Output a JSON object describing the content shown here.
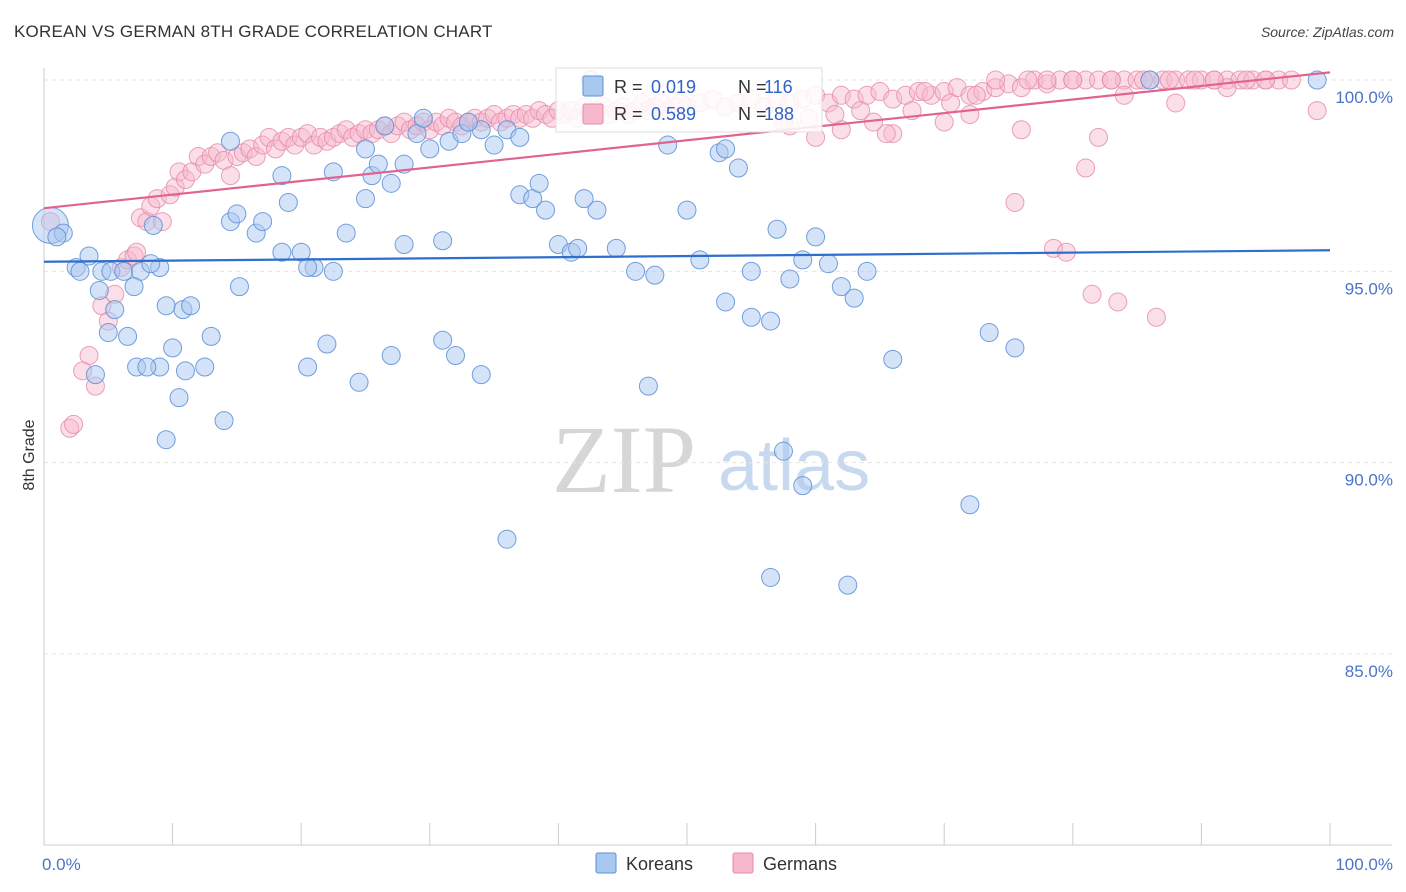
{
  "title": "KOREAN VS GERMAN 8TH GRADE CORRELATION CHART",
  "source": "Source: ZipAtlas.com",
  "watermark": {
    "zip": "ZIP",
    "atlas": "atlas"
  },
  "colors": {
    "korean_fill": "#a9c8f0",
    "korean_stroke": "#5b8fd6",
    "korean_line": "#2e6fcc",
    "german_fill": "#f6b8cb",
    "german_stroke": "#e58aa8",
    "german_line": "#e0648f",
    "tick_label": "#4a74c9",
    "grid": "#e4e4e4"
  },
  "legend": {
    "korean": {
      "r_label": "R = ",
      "r_value": "0.019",
      "n_label": "N = ",
      "n_value": "116"
    },
    "german": {
      "r_label": "R = ",
      "r_value": "0.589",
      "n_label": "N = ",
      "n_value": "188"
    }
  },
  "chart_data": {
    "type": "scatter",
    "title": "KOREAN VS GERMAN 8TH GRADE CORRELATION CHART",
    "xlabel": "",
    "ylabel": "8th Grade",
    "xlim": [
      0,
      100
    ],
    "ylim": [
      80.5,
      100.6
    ],
    "x_tick_labels": [
      "0.0%",
      "100.0%"
    ],
    "y_ticks": [
      85,
      90,
      95,
      100
    ],
    "y_tick_labels": [
      "85.0%",
      "90.0%",
      "95.0%",
      "100.0%"
    ],
    "grid": true,
    "legend_position": "top-center",
    "bottom_legend": [
      "Koreans",
      "Germans"
    ],
    "series": [
      {
        "name": "Koreans",
        "r": 0.019,
        "n": 116,
        "trend": {
          "x": [
            0,
            100
          ],
          "y": [
            95.25,
            95.55
          ]
        },
        "points": [
          [
            0.5,
            96.2
          ],
          [
            1.5,
            96.0
          ],
          [
            1.0,
            95.9
          ],
          [
            3.5,
            95.4
          ],
          [
            2.5,
            95.1
          ],
          [
            2.8,
            95.0
          ],
          [
            4.5,
            95.0
          ],
          [
            5.2,
            95.0
          ],
          [
            6.2,
            95.0
          ],
          [
            7.5,
            95.0
          ],
          [
            9.0,
            95.1
          ],
          [
            8.3,
            95.2
          ],
          [
            7.0,
            94.6
          ],
          [
            4.3,
            94.5
          ],
          [
            5.5,
            94.0
          ],
          [
            9.5,
            94.1
          ],
          [
            10.8,
            94.0
          ],
          [
            11.4,
            94.1
          ],
          [
            5.0,
            93.4
          ],
          [
            6.5,
            93.3
          ],
          [
            13.0,
            93.3
          ],
          [
            10.0,
            93.0
          ],
          [
            9.0,
            92.5
          ],
          [
            7.2,
            92.5
          ],
          [
            8.0,
            92.5
          ],
          [
            12.5,
            92.5
          ],
          [
            4.0,
            92.3
          ],
          [
            10.5,
            91.7
          ],
          [
            11.0,
            92.4
          ],
          [
            14.0,
            91.1
          ],
          [
            9.5,
            90.6
          ],
          [
            15.2,
            94.6
          ],
          [
            14.5,
            96.3
          ],
          [
            15.0,
            96.5
          ],
          [
            16.5,
            96.0
          ],
          [
            17.0,
            96.3
          ],
          [
            18.5,
            95.5
          ],
          [
            20.0,
            95.5
          ],
          [
            21.0,
            95.1
          ],
          [
            22.5,
            95.0
          ],
          [
            23.5,
            96.0
          ],
          [
            25.0,
            96.9
          ],
          [
            25.5,
            97.5
          ],
          [
            26.0,
            97.8
          ],
          [
            27.0,
            97.3
          ],
          [
            28.0,
            97.8
          ],
          [
            29.0,
            98.6
          ],
          [
            30.0,
            98.2
          ],
          [
            31.5,
            98.4
          ],
          [
            32.5,
            98.6
          ],
          [
            34.0,
            98.7
          ],
          [
            35.0,
            98.3
          ],
          [
            36.0,
            98.7
          ],
          [
            37.0,
            97.0
          ],
          [
            38.0,
            96.9
          ],
          [
            38.5,
            97.3
          ],
          [
            39.0,
            96.6
          ],
          [
            40.0,
            95.7
          ],
          [
            41.0,
            95.5
          ],
          [
            41.5,
            95.6
          ],
          [
            42.0,
            96.9
          ],
          [
            43.0,
            96.6
          ],
          [
            44.5,
            95.6
          ],
          [
            46.0,
            95.0
          ],
          [
            47.5,
            94.9
          ],
          [
            48.5,
            98.3
          ],
          [
            50.0,
            96.6
          ],
          [
            51.0,
            95.3
          ],
          [
            52.5,
            98.1
          ],
          [
            53.0,
            98.2
          ],
          [
            54.0,
            97.7
          ],
          [
            55.0,
            95.0
          ],
          [
            56.5,
            93.7
          ],
          [
            57.0,
            96.1
          ],
          [
            58.0,
            94.8
          ],
          [
            59.0,
            95.3
          ],
          [
            60.0,
            95.9
          ],
          [
            61.0,
            95.2
          ],
          [
            62.0,
            94.6
          ],
          [
            63.0,
            94.3
          ],
          [
            64.0,
            95.0
          ],
          [
            66.0,
            92.7
          ],
          [
            14.5,
            98.4
          ],
          [
            18.5,
            97.5
          ],
          [
            19.0,
            96.8
          ],
          [
            22.5,
            97.6
          ],
          [
            25.0,
            98.2
          ],
          [
            26.5,
            98.8
          ],
          [
            29.5,
            99.0
          ],
          [
            33.0,
            98.9
          ],
          [
            37.0,
            98.5
          ],
          [
            22.0,
            93.1
          ],
          [
            24.5,
            92.1
          ],
          [
            31.0,
            93.2
          ],
          [
            32.0,
            92.8
          ],
          [
            34.0,
            92.3
          ],
          [
            20.5,
            92.5
          ],
          [
            27.0,
            92.8
          ],
          [
            28.0,
            95.7
          ],
          [
            31.0,
            95.8
          ],
          [
            53.0,
            94.2
          ],
          [
            55.0,
            93.8
          ],
          [
            47.0,
            92.0
          ],
          [
            57.5,
            90.3
          ],
          [
            59.0,
            89.4
          ],
          [
            72.0,
            88.9
          ],
          [
            36.0,
            88.0
          ],
          [
            56.5,
            87.0
          ],
          [
            62.5,
            86.8
          ],
          [
            73.5,
            93.4
          ],
          [
            75.5,
            93.0
          ],
          [
            86.0,
            100.0
          ],
          [
            99.0,
            100.0
          ],
          [
            42.5,
            100.0
          ],
          [
            20.5,
            95.1
          ],
          [
            8.5,
            96.2
          ]
        ]
      },
      {
        "name": "Germans",
        "r": 0.589,
        "n": 188,
        "trend": {
          "x": [
            0,
            100
          ],
          "y": [
            96.65,
            100.2
          ]
        },
        "points": [
          [
            0.5,
            96.3
          ],
          [
            3.5,
            92.8
          ],
          [
            3.0,
            92.4
          ],
          [
            4.0,
            92.0
          ],
          [
            2.0,
            90.9
          ],
          [
            2.3,
            91.0
          ],
          [
            4.5,
            94.1
          ],
          [
            5.0,
            93.7
          ],
          [
            5.5,
            94.4
          ],
          [
            6.0,
            95.1
          ],
          [
            6.5,
            95.3
          ],
          [
            7.0,
            95.4
          ],
          [
            7.2,
            95.5
          ],
          [
            7.5,
            96.4
          ],
          [
            8.0,
            96.3
          ],
          [
            8.3,
            96.7
          ],
          [
            8.8,
            96.9
          ],
          [
            9.2,
            96.3
          ],
          [
            9.8,
            97.0
          ],
          [
            10.2,
            97.2
          ],
          [
            10.5,
            97.6
          ],
          [
            11.0,
            97.4
          ],
          [
            11.5,
            97.6
          ],
          [
            12.0,
            98.0
          ],
          [
            12.5,
            97.8
          ],
          [
            13.0,
            98.0
          ],
          [
            13.5,
            98.1
          ],
          [
            14.0,
            97.9
          ],
          [
            14.5,
            97.5
          ],
          [
            15.0,
            98.0
          ],
          [
            15.5,
            98.1
          ],
          [
            16.0,
            98.2
          ],
          [
            16.5,
            98.0
          ],
          [
            17.0,
            98.3
          ],
          [
            17.5,
            98.5
          ],
          [
            18.0,
            98.2
          ],
          [
            18.5,
            98.4
          ],
          [
            19.0,
            98.5
          ],
          [
            19.5,
            98.3
          ],
          [
            20.0,
            98.5
          ],
          [
            20.5,
            98.6
          ],
          [
            21.0,
            98.3
          ],
          [
            21.5,
            98.5
          ],
          [
            22.0,
            98.4
          ],
          [
            22.5,
            98.5
          ],
          [
            23.0,
            98.6
          ],
          [
            23.5,
            98.7
          ],
          [
            24.0,
            98.5
          ],
          [
            24.5,
            98.6
          ],
          [
            25.0,
            98.7
          ],
          [
            25.5,
            98.6
          ],
          [
            26.0,
            98.7
          ],
          [
            26.5,
            98.8
          ],
          [
            27.0,
            98.6
          ],
          [
            27.5,
            98.8
          ],
          [
            28.0,
            98.9
          ],
          [
            28.5,
            98.7
          ],
          [
            29.0,
            98.8
          ],
          [
            29.5,
            98.9
          ],
          [
            30.0,
            98.7
          ],
          [
            30.5,
            98.9
          ],
          [
            31.0,
            98.8
          ],
          [
            31.5,
            99.0
          ],
          [
            32.0,
            98.9
          ],
          [
            32.5,
            98.8
          ],
          [
            33.0,
            98.9
          ],
          [
            33.5,
            99.0
          ],
          [
            34.0,
            98.9
          ],
          [
            34.5,
            99.0
          ],
          [
            35.0,
            99.1
          ],
          [
            35.5,
            98.9
          ],
          [
            36.0,
            99.0
          ],
          [
            36.5,
            99.1
          ],
          [
            37.0,
            99.0
          ],
          [
            37.5,
            99.1
          ],
          [
            38.0,
            99.0
          ],
          [
            38.5,
            99.2
          ],
          [
            39.0,
            99.1
          ],
          [
            39.5,
            99.0
          ],
          [
            40.0,
            99.2
          ],
          [
            40.5,
            99.1
          ],
          [
            41.0,
            99.2
          ],
          [
            41.5,
            99.0
          ],
          [
            42.0,
            99.3
          ],
          [
            42.5,
            99.1
          ],
          [
            43.0,
            99.2
          ],
          [
            43.5,
            99.3
          ],
          [
            44.0,
            99.1
          ],
          [
            44.5,
            99.2
          ],
          [
            45.0,
            99.3
          ],
          [
            45.5,
            99.1
          ],
          [
            46.0,
            99.2
          ],
          [
            46.5,
            99.4
          ],
          [
            47.0,
            99.2
          ],
          [
            47.5,
            99.3
          ],
          [
            48.0,
            99.4
          ],
          [
            48.5,
            99.2
          ],
          [
            49.0,
            99.3
          ],
          [
            49.5,
            99.4
          ],
          [
            50.0,
            99.3
          ],
          [
            51.0,
            99.4
          ],
          [
            52.0,
            99.5
          ],
          [
            53.0,
            99.3
          ],
          [
            54.0,
            99.4
          ],
          [
            55.0,
            99.5
          ],
          [
            56.0,
            99.3
          ],
          [
            57.0,
            99.5
          ],
          [
            58.0,
            99.4
          ],
          [
            59.0,
            99.5
          ],
          [
            60.0,
            99.6
          ],
          [
            61.0,
            99.4
          ],
          [
            62.0,
            99.6
          ],
          [
            63.0,
            99.5
          ],
          [
            64.0,
            99.6
          ],
          [
            65.0,
            99.7
          ],
          [
            66.0,
            99.5
          ],
          [
            67.0,
            99.6
          ],
          [
            68.0,
            99.7
          ],
          [
            69.0,
            99.6
          ],
          [
            70.0,
            99.7
          ],
          [
            71.0,
            99.8
          ],
          [
            72.0,
            99.6
          ],
          [
            73.0,
            99.7
          ],
          [
            74.0,
            99.8
          ],
          [
            75.0,
            99.9
          ],
          [
            76.0,
            99.8
          ],
          [
            77.0,
            100.0
          ],
          [
            78.0,
            99.9
          ],
          [
            79.0,
            100.0
          ],
          [
            80.0,
            100.0
          ],
          [
            81.0,
            100.0
          ],
          [
            82.0,
            100.0
          ],
          [
            83.0,
            100.0
          ],
          [
            84.0,
            100.0
          ],
          [
            85.0,
            100.0
          ],
          [
            86.0,
            100.0
          ],
          [
            87.0,
            100.0
          ],
          [
            88.0,
            100.0
          ],
          [
            89.0,
            100.0
          ],
          [
            90.0,
            100.0
          ],
          [
            91.0,
            100.0
          ],
          [
            92.0,
            100.0
          ],
          [
            93.0,
            100.0
          ],
          [
            94.0,
            100.0
          ],
          [
            95.0,
            100.0
          ],
          [
            96.0,
            100.0
          ],
          [
            97.0,
            100.0
          ],
          [
            66.0,
            98.6
          ],
          [
            62.0,
            98.7
          ],
          [
            60.0,
            98.5
          ],
          [
            58.0,
            98.8
          ],
          [
            70.0,
            98.9
          ],
          [
            72.0,
            99.1
          ],
          [
            76.0,
            98.7
          ],
          [
            82.0,
            98.5
          ],
          [
            84.0,
            99.6
          ],
          [
            88.0,
            99.4
          ],
          [
            92.0,
            99.8
          ],
          [
            75.5,
            96.8
          ],
          [
            78.5,
            95.6
          ],
          [
            79.5,
            95.5
          ],
          [
            81.5,
            94.4
          ],
          [
            83.5,
            94.2
          ],
          [
            86.5,
            93.8
          ],
          [
            81.0,
            97.7
          ],
          [
            99.0,
            99.2
          ],
          [
            95.0,
            100.0
          ],
          [
            93.5,
            100.0
          ],
          [
            91.0,
            100.0
          ],
          [
            89.5,
            100.0
          ],
          [
            87.5,
            100.0
          ],
          [
            85.5,
            100.0
          ],
          [
            83.0,
            100.0
          ],
          [
            80.0,
            100.0
          ],
          [
            78.0,
            100.0
          ],
          [
            76.5,
            100.0
          ],
          [
            74.0,
            100.0
          ],
          [
            72.5,
            99.6
          ],
          [
            70.5,
            99.4
          ],
          [
            68.5,
            99.7
          ],
          [
            67.5,
            99.2
          ],
          [
            65.5,
            98.6
          ],
          [
            64.5,
            98.9
          ],
          [
            63.5,
            99.2
          ],
          [
            61.5,
            99.1
          ],
          [
            59.5,
            99.0
          ],
          [
            57.5,
            98.9
          ]
        ]
      }
    ]
  }
}
